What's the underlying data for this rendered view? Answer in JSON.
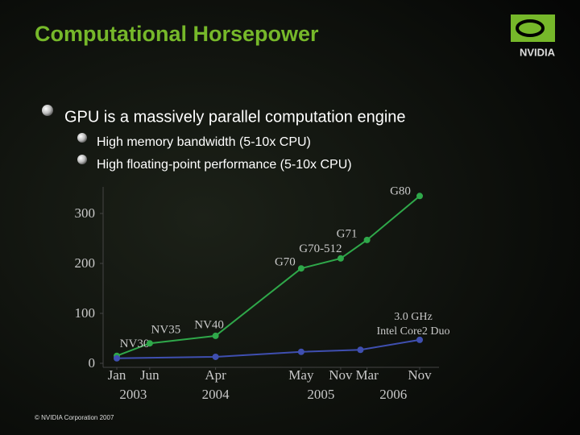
{
  "title": "Computational Horsepower",
  "logo_text": "NVIDIA",
  "bullets": [
    {
      "text": "GPU is a massively parallel computation engine",
      "sub": [
        "High memory bandwidth (5-10x CPU)",
        "High floating-point performance (5-10x CPU)"
      ]
    }
  ],
  "footer": "© NVIDIA Corporation 2007",
  "chart_data": {
    "type": "line",
    "xlim": [
      "2003-01",
      "2006-11"
    ],
    "xticks": [
      {
        "value": "2003-01",
        "label": "Jan"
      },
      {
        "value": "2003-06",
        "label": "Jun"
      },
      {
        "value": "2004-04",
        "label": "Apr"
      },
      {
        "value": "2005-05",
        "label": "May"
      },
      {
        "value": "2005-11",
        "label": "Nov"
      },
      {
        "value": "2006-03",
        "label": "Mar"
      },
      {
        "value": "2006-11",
        "label": "Nov"
      }
    ],
    "years": [
      "2003",
      "2004",
      "2005",
      "2006"
    ],
    "ylim": [
      0,
      350
    ],
    "yticks": [
      0,
      100,
      200,
      300
    ],
    "series": [
      {
        "color": "#2fa84a",
        "x": [
          "2003-01",
          "2003-06",
          "2004-04",
          "2005-05",
          "2005-11",
          "2006-03",
          "2006-11"
        ],
        "values": [
          15,
          40,
          55,
          190,
          210,
          247,
          335
        ],
        "point_labels": [
          "NV30",
          "NV35",
          "NV40",
          "G70",
          "G70-512",
          "G71",
          "G80"
        ]
      },
      {
        "color": "#3f4fb0",
        "x": [
          "2003-01",
          "2004-04",
          "2005-05",
          "2006-02",
          "2006-11"
        ],
        "values": [
          10,
          13,
          23,
          27,
          47
        ],
        "annotation": [
          "3.0 GHz",
          "Intel Core2 Duo"
        ]
      }
    ]
  }
}
